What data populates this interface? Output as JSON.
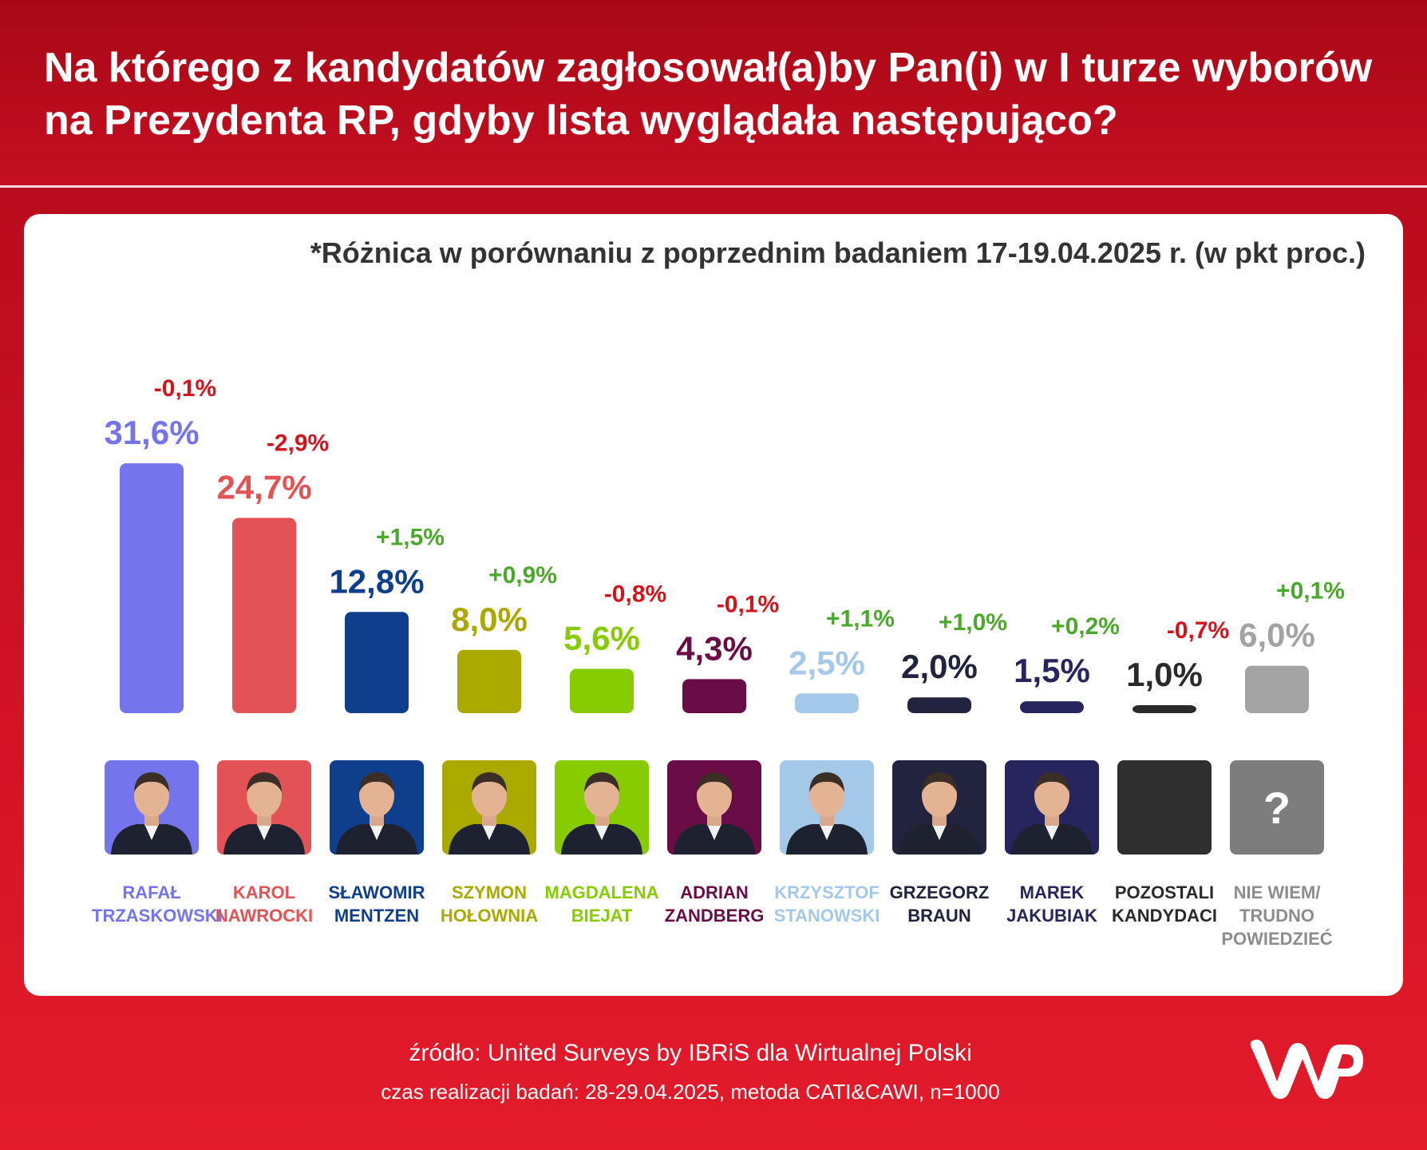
{
  "header": {
    "title": "Na którego z kandydatów zagłosował(a)by Pan(i) w I turze wyborów na Prezydenta RP, gdyby lista wyglądała następująco?"
  },
  "note": "*Różnica w porównaniu z poprzednim badaniem 17-19.04.2025 r. (w pkt proc.)",
  "chart_data": {
    "type": "bar",
    "categories": [
      "RAFAŁ TRZASKOWSKI",
      "KAROL NAWROCKI",
      "SŁAWOMIR MENTZEN",
      "SZYMON HOŁOWNIA",
      "MAGDALENA BIEJAT",
      "ADRIAN ZANDBERG",
      "KRZYSZTOF STANOWSKI",
      "GRZEGORZ BRAUN",
      "MAREK JAKUBIAK",
      "POZOSTALI KANDYDACI",
      "NIE WIEM/ TRUDNO POWIEDZIEĆ"
    ],
    "values": [
      31.6,
      24.7,
      12.8,
      8.0,
      5.6,
      4.3,
      2.5,
      2.0,
      1.5,
      1.0,
      6.0
    ],
    "value_labels": [
      "31,6%",
      "24,7%",
      "12,8%",
      "8,0%",
      "5,6%",
      "4,3%",
      "2,5%",
      "2,0%",
      "1,5%",
      "1,0%",
      "6,0%"
    ],
    "changes": [
      -0.1,
      -2.9,
      1.5,
      0.9,
      -0.8,
      -0.1,
      1.1,
      1.0,
      0.2,
      -0.7,
      0.1
    ],
    "change_labels": [
      "-0,1%",
      "-2,9%",
      "+1,5%",
      "+0,9%",
      "-0,8%",
      "-0,1%",
      "+1,1%",
      "+1,0%",
      "+0,2%",
      "-0,7%",
      "+0,1%"
    ],
    "colors": [
      "#7474ec",
      "#e35355",
      "#0f3f8c",
      "#a9a900",
      "#86cc00",
      "#6a0c45",
      "#a4c8e8",
      "#22233d",
      "#26255e",
      "#2a2a2a",
      "#a3a3a3"
    ],
    "change_colors": {
      "positive": "#4aa82a",
      "negative": "#d1141e"
    }
  },
  "photos": [
    {
      "icon": "person-photo-icon",
      "bg": "#7474ec"
    },
    {
      "icon": "person-photo-icon",
      "bg": "#e35355"
    },
    {
      "icon": "person-photo-icon",
      "bg": "#0f3f8c"
    },
    {
      "icon": "person-photo-icon",
      "bg": "#a9a900"
    },
    {
      "icon": "person-photo-icon",
      "bg": "#86cc00"
    },
    {
      "icon": "person-photo-icon",
      "bg": "#6a0c45"
    },
    {
      "icon": "person-photo-icon",
      "bg": "#a4c8e8"
    },
    {
      "icon": "person-photo-icon",
      "bg": "#22233d"
    },
    {
      "icon": "person-photo-icon",
      "bg": "#26255e"
    },
    {
      "icon": "blank-square-icon",
      "bg": "#2f2f2f"
    },
    {
      "icon": "question-mark-icon",
      "bg": "#7d7d7d",
      "symbol": "?"
    }
  ],
  "labels": [
    "RAFAŁ\nTRZASKOWSKI",
    "KAROL\nNAWROCKI",
    "SŁAWOMIR\nMENTZEN",
    "SZYMON\nHOŁOWNIA",
    "MAGDALENA\nBIEJAT",
    "ADRIAN\nZANDBERG",
    "KRZYSZTOF\nSTANOWSKI",
    "GRZEGORZ\nBRAUN",
    "MAREK\nJAKUBIAK",
    "POZOSTALI\nKANDYDACI",
    "NIE WIEM/\nTRUDNO\nPOWIEDZIEĆ"
  ],
  "footer": {
    "source": "źródło: United Surveys by IBRiS dla Wirtualnej Polski",
    "method": "czas realizacji badań: 28-29.04.2025, metoda CATI&CAWI, n=1000"
  },
  "logo": {
    "icon": "wp-logo-icon"
  }
}
